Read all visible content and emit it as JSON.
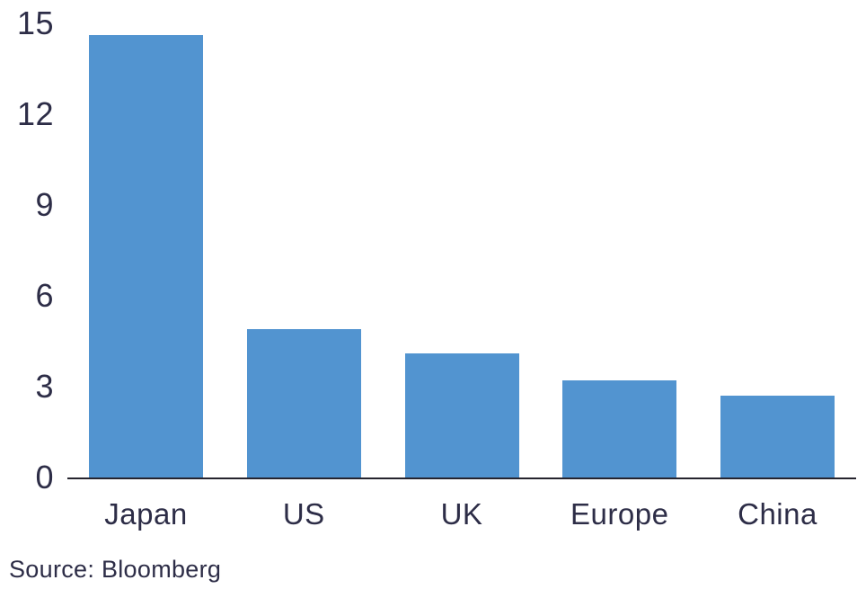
{
  "chart_data": {
    "type": "bar",
    "categories": [
      "Japan",
      "US",
      "UK",
      "Europe",
      "China"
    ],
    "values": [
      14.6,
      4.9,
      4.1,
      3.2,
      2.7
    ],
    "title": "",
    "xlabel": "",
    "ylabel": "",
    "ylim": [
      0,
      15
    ],
    "yticks": [
      0,
      3,
      6,
      9,
      12,
      15
    ],
    "grid": false,
    "legend": "none",
    "bar_color": "#5294d0"
  },
  "source_note": "Source: Bloomberg",
  "colors": {
    "bar": "#5294d0",
    "text": "#2d2d47",
    "axis": "#26242e",
    "background": "#ffffff"
  }
}
